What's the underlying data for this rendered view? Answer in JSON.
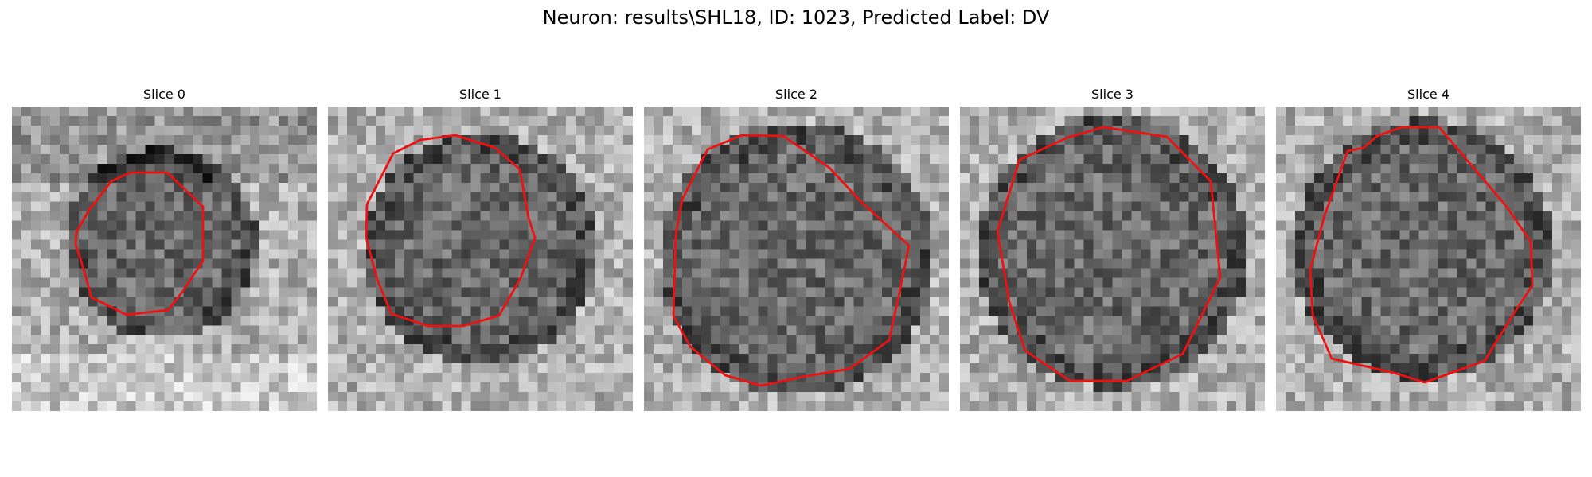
{
  "figure": {
    "title": "Neuron: results\\SHL18, ID: 1023, Predicted Label: DV"
  },
  "contour_color": "#ee1111",
  "panels": [
    {
      "title": "Slice 0"
    },
    {
      "title": "Slice 1"
    },
    {
      "title": "Slice 2"
    },
    {
      "title": "Slice 3"
    },
    {
      "title": "Slice 4"
    }
  ]
}
